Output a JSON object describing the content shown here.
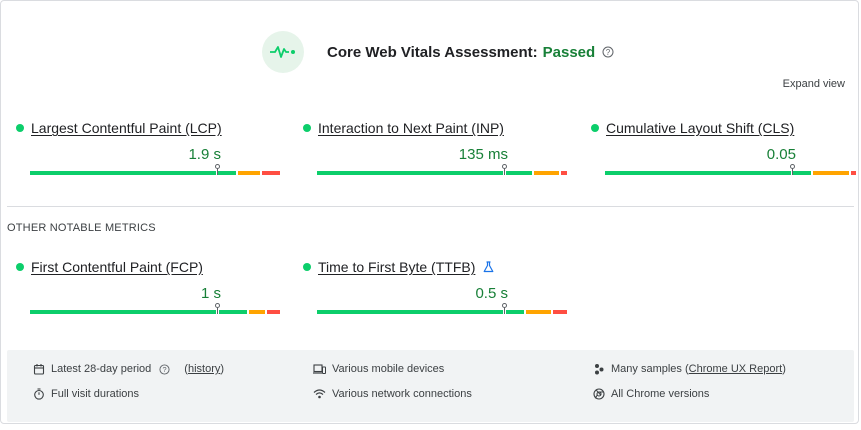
{
  "header": {
    "title": "Core Web Vitals Assessment:",
    "status": "Passed",
    "expand_label": "Expand view"
  },
  "colors": {
    "good": "#0cce6b",
    "needs_improvement": "#ffa400",
    "poor": "#ff4e42",
    "pass_text": "#188038"
  },
  "core_metrics": [
    {
      "name": "Largest Contentful Paint (LCP)",
      "value": "1.9 s",
      "distribution": {
        "good": 0.75,
        "needs_improvement": 0.1,
        "poor": 0.08
      }
    },
    {
      "name": "Interaction to Next Paint (INP)",
      "value": "135 ms",
      "distribution": {
        "good": 0.75,
        "needs_improvement": 0.1,
        "poor": 0.03
      }
    },
    {
      "name": "Cumulative Layout Shift (CLS)",
      "value": "0.05",
      "distribution": {
        "good": 0.75,
        "needs_improvement": 0.15,
        "poor": 0.03
      }
    }
  ],
  "other_section_title": "OTHER NOTABLE METRICS",
  "other_metrics": [
    {
      "name": "First Contentful Paint (FCP)",
      "value": "1 s",
      "experimental": false
    },
    {
      "name": "Time to First Byte (TTFB)",
      "value": "0.5 s",
      "experimental": true
    }
  ],
  "footer": {
    "period": {
      "text": "Latest 28-day period",
      "link_open": "(",
      "link": "history",
      "link_close": ")"
    },
    "durations": "Full visit durations",
    "devices": "Various mobile devices",
    "network": "Various network connections",
    "samples": {
      "text": "Many samples (",
      "link": "Chrome UX Report",
      "close": ")"
    },
    "chrome": "All Chrome versions"
  },
  "icons": {
    "header": "vitals-pulse-icon",
    "help": "help-circle-icon",
    "calendar": "calendar-icon",
    "timer": "timer-icon",
    "devices": "devices-icon",
    "network": "wifi-icon",
    "samples": "samples-icon",
    "chrome": "chrome-icon",
    "lab": "lab-flask-icon"
  }
}
